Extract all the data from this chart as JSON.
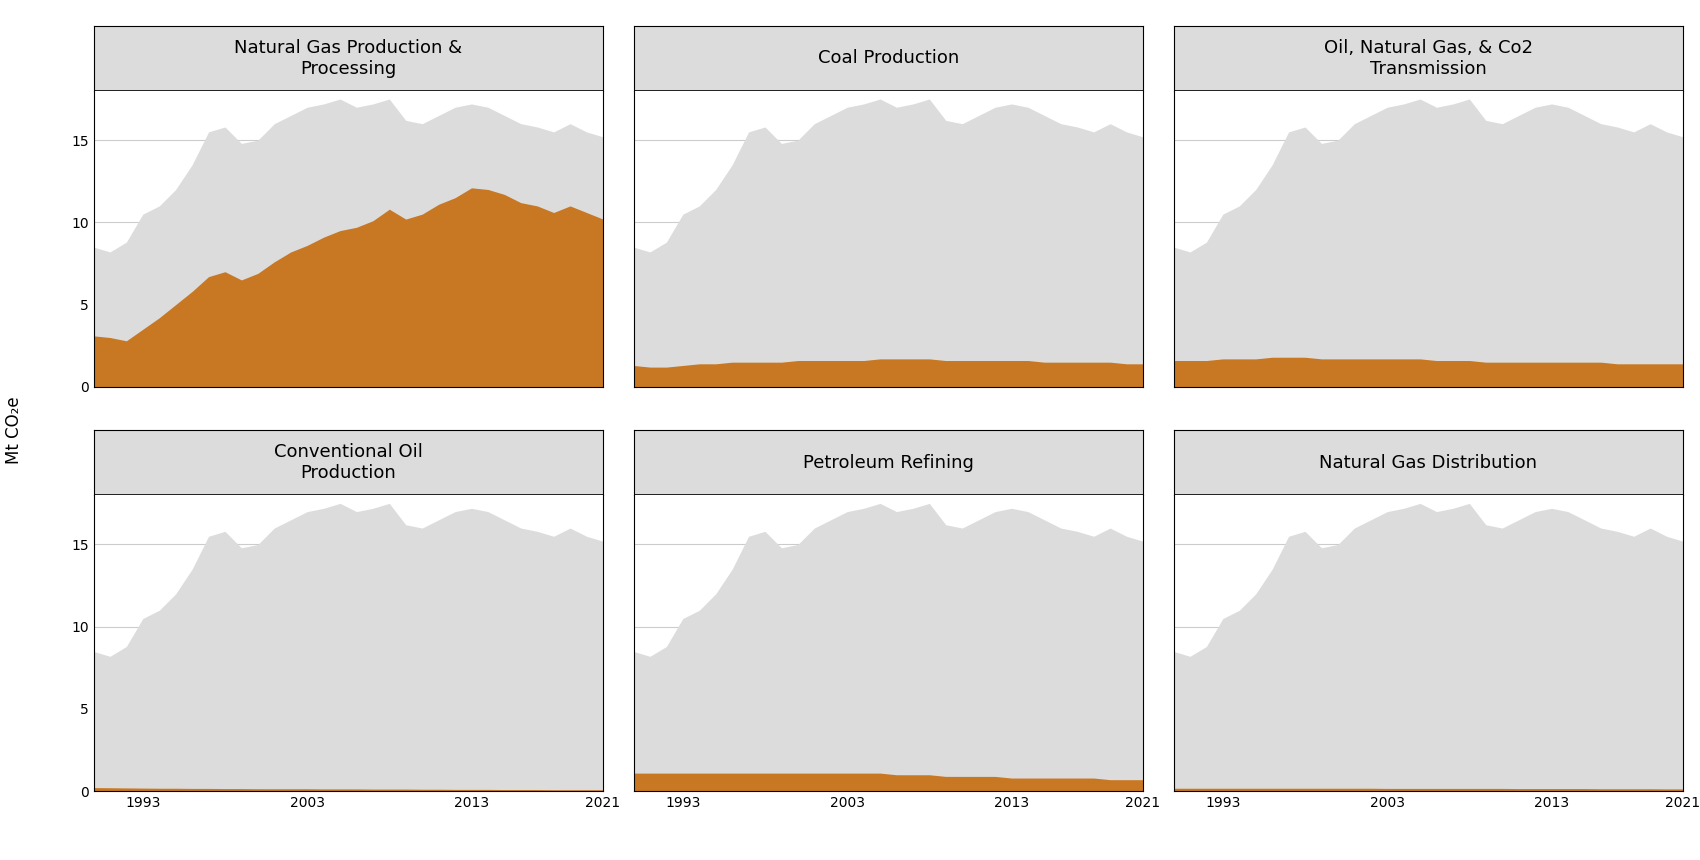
{
  "years": [
    1990,
    1991,
    1992,
    1993,
    1994,
    1995,
    1996,
    1997,
    1998,
    1999,
    2000,
    2001,
    2002,
    2003,
    2004,
    2005,
    2006,
    2007,
    2008,
    2009,
    2010,
    2011,
    2012,
    2013,
    2014,
    2015,
    2016,
    2017,
    2018,
    2019,
    2020,
    2021
  ],
  "sector_total": [
    8.5,
    8.2,
    8.8,
    10.5,
    11.0,
    12.0,
    13.5,
    15.5,
    15.8,
    14.8,
    15.0,
    16.0,
    16.5,
    17.0,
    17.2,
    17.5,
    17.0,
    17.2,
    17.5,
    16.2,
    16.0,
    16.5,
    17.0,
    17.2,
    17.0,
    16.5,
    16.0,
    15.8,
    15.5,
    16.0,
    15.5,
    15.2
  ],
  "subplots": [
    {
      "title": "Natural Gas Production &\nProcessing",
      "subsector": [
        3.1,
        3.0,
        2.8,
        3.5,
        4.2,
        5.0,
        5.8,
        6.7,
        7.0,
        6.5,
        6.9,
        7.6,
        8.2,
        8.6,
        9.1,
        9.5,
        9.7,
        10.1,
        10.8,
        10.2,
        10.5,
        11.1,
        11.5,
        12.1,
        12.0,
        11.7,
        11.2,
        11.0,
        10.6,
        11.0,
        10.6,
        10.2
      ]
    },
    {
      "title": "Coal Production",
      "subsector": [
        1.3,
        1.2,
        1.2,
        1.3,
        1.4,
        1.4,
        1.5,
        1.5,
        1.5,
        1.5,
        1.6,
        1.6,
        1.6,
        1.6,
        1.6,
        1.7,
        1.7,
        1.7,
        1.7,
        1.6,
        1.6,
        1.6,
        1.6,
        1.6,
        1.6,
        1.5,
        1.5,
        1.5,
        1.5,
        1.5,
        1.4,
        1.4
      ]
    },
    {
      "title": "Oil, Natural Gas, & Co2\nTransmission",
      "subsector": [
        1.6,
        1.6,
        1.6,
        1.7,
        1.7,
        1.7,
        1.8,
        1.8,
        1.8,
        1.7,
        1.7,
        1.7,
        1.7,
        1.7,
        1.7,
        1.7,
        1.6,
        1.6,
        1.6,
        1.5,
        1.5,
        1.5,
        1.5,
        1.5,
        1.5,
        1.5,
        1.5,
        1.4,
        1.4,
        1.4,
        1.4,
        1.4
      ]
    },
    {
      "title": "Conventional Oil\nProduction",
      "subsector": [
        0.22,
        0.21,
        0.2,
        0.19,
        0.18,
        0.18,
        0.17,
        0.17,
        0.16,
        0.16,
        0.15,
        0.15,
        0.15,
        0.15,
        0.14,
        0.14,
        0.14,
        0.13,
        0.13,
        0.13,
        0.12,
        0.12,
        0.11,
        0.11,
        0.11,
        0.1,
        0.1,
        0.1,
        0.09,
        0.09,
        0.09,
        0.09
      ]
    },
    {
      "title": "Petroleum Refining",
      "subsector": [
        1.1,
        1.1,
        1.1,
        1.1,
        1.1,
        1.1,
        1.1,
        1.1,
        1.1,
        1.1,
        1.1,
        1.1,
        1.1,
        1.1,
        1.1,
        1.1,
        1.0,
        1.0,
        1.0,
        0.9,
        0.9,
        0.9,
        0.9,
        0.8,
        0.8,
        0.8,
        0.8,
        0.8,
        0.8,
        0.7,
        0.7,
        0.7
      ]
    },
    {
      "title": "Natural Gas Distribution",
      "subsector": [
        0.18,
        0.18,
        0.18,
        0.18,
        0.18,
        0.18,
        0.18,
        0.18,
        0.18,
        0.18,
        0.18,
        0.18,
        0.18,
        0.17,
        0.17,
        0.17,
        0.17,
        0.17,
        0.17,
        0.17,
        0.17,
        0.16,
        0.16,
        0.16,
        0.16,
        0.16,
        0.15,
        0.15,
        0.15,
        0.15,
        0.14,
        0.14
      ]
    }
  ],
  "ylim": [
    0,
    18
  ],
  "yticks": [
    0,
    5,
    10,
    15
  ],
  "xticks": [
    1993,
    2003,
    2013,
    2021
  ],
  "subsector_color": "#C87722",
  "total_color": "#DCDCDC",
  "title_bg_color": "#DCDCDC",
  "plot_bg_color": "#FFFFFF",
  "grid_color": "#CCCCCC",
  "ylabel": "Mt CO₂e",
  "title_fontsize": 13,
  "tick_fontsize": 10,
  "ylabel_fontsize": 12
}
